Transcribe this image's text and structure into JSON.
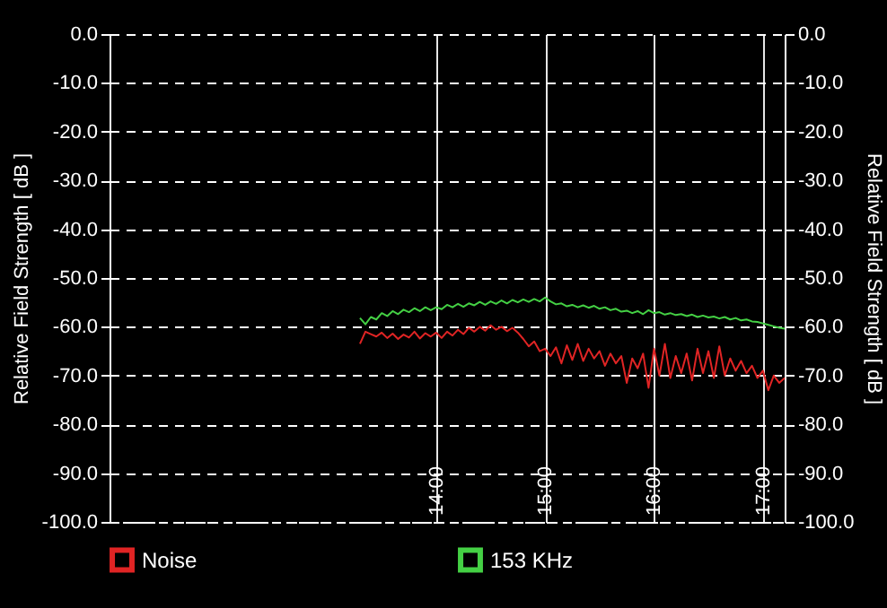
{
  "chart_data": {
    "type": "line",
    "xlabel": null,
    "ylabel": "Relative Field Strength [ dB ]",
    "y2label": "Relative Field Strength [ dB ]",
    "x": [
      13.3,
      13.35,
      13.4,
      13.45,
      13.5,
      13.55,
      13.6,
      13.65,
      13.7,
      13.75,
      13.8,
      13.85,
      13.9,
      13.95,
      14.0,
      14.05,
      14.1,
      14.15,
      14.2,
      14.25,
      14.3,
      14.35,
      14.4,
      14.45,
      14.5,
      14.55,
      14.6,
      14.65,
      14.7,
      14.75,
      14.8,
      14.85,
      14.9,
      14.95,
      15.0,
      15.05,
      15.1,
      15.15,
      15.2,
      15.25,
      15.3,
      15.35,
      15.4,
      15.45,
      15.5,
      15.55,
      15.6,
      15.65,
      15.7,
      15.75,
      15.8,
      15.85,
      15.9,
      15.95,
      16.0,
      16.05,
      16.1,
      16.15,
      16.2,
      16.25,
      16.3,
      16.35,
      16.4,
      16.45,
      16.5,
      16.55,
      16.6,
      16.65,
      16.7,
      16.75,
      16.8,
      16.85,
      16.9,
      16.95,
      17.0,
      17.05,
      17.1,
      17.15,
      17.2
    ],
    "series": [
      {
        "name": "Noise",
        "color": "#e02424",
        "values": [
          -63.5,
          -61.0,
          -61.5,
          -62.0,
          -61.2,
          -62.3,
          -61.4,
          -62.5,
          -61.6,
          -62.2,
          -61.0,
          -62.4,
          -61.3,
          -62.0,
          -61.2,
          -62.3,
          -61.0,
          -61.8,
          -60.6,
          -61.5,
          -60.2,
          -61.0,
          -60.0,
          -60.8,
          -59.7,
          -60.6,
          -60.0,
          -60.9,
          -60.2,
          -61.2,
          -62.5,
          -64.0,
          -63.0,
          -65.0,
          -64.5,
          -66.0,
          -64.2,
          -67.5,
          -63.8,
          -66.8,
          -63.5,
          -67.0,
          -64.5,
          -66.5,
          -65.0,
          -68.0,
          -65.5,
          -67.5,
          -66.0,
          -71.5,
          -66.5,
          -68.5,
          -65.5,
          -72.5,
          -64.5,
          -70.0,
          -63.5,
          -70.5,
          -66.0,
          -69.5,
          -65.5,
          -71.0,
          -64.5,
          -69.5,
          -65.0,
          -70.5,
          -64.0,
          -70.0,
          -66.5,
          -69.0,
          -67.0,
          -69.5,
          -68.0,
          -70.5,
          -69.0,
          -73.0,
          -70.0,
          -71.5,
          -70.5
        ]
      },
      {
        "name": "153 KHz",
        "color": "#44d044",
        "values": [
          -58.2,
          -59.5,
          -58.0,
          -58.5,
          -57.2,
          -57.8,
          -56.8,
          -57.4,
          -56.5,
          -57.0,
          -56.2,
          -56.8,
          -56.0,
          -56.6,
          -56.0,
          -56.4,
          -55.5,
          -56.0,
          -55.3,
          -55.9,
          -55.2,
          -55.6,
          -54.9,
          -55.5,
          -54.8,
          -55.3,
          -54.6,
          -55.2,
          -54.5,
          -55.0,
          -54.4,
          -54.9,
          -54.3,
          -54.8,
          -54.0,
          -54.8,
          -55.4,
          -55.2,
          -55.8,
          -55.5,
          -56.0,
          -55.6,
          -56.1,
          -55.7,
          -56.3,
          -56.0,
          -56.6,
          -56.3,
          -56.9,
          -56.7,
          -57.2,
          -56.8,
          -57.4,
          -56.6,
          -57.2,
          -57.0,
          -57.5,
          -57.2,
          -57.6,
          -57.4,
          -57.8,
          -57.5,
          -58.0,
          -57.7,
          -58.1,
          -57.9,
          -58.3,
          -58.0,
          -58.5,
          -58.2,
          -58.7,
          -58.5,
          -58.9,
          -59.0,
          -59.3,
          -59.6,
          -59.9,
          -60.2,
          -60.4
        ]
      }
    ],
    "xlim": [
      11,
      17.2
    ],
    "xticks": [
      {
        "value": 14,
        "label": "14:00"
      },
      {
        "value": 15,
        "label": "15:00"
      },
      {
        "value": 16,
        "label": "16:00"
      },
      {
        "value": 17,
        "label": "17:00"
      }
    ],
    "ylim": [
      -100,
      0
    ],
    "yticks": [
      {
        "value": 0,
        "label": "0.0"
      },
      {
        "value": -10,
        "label": "-10.0"
      },
      {
        "value": -20,
        "label": "-20.0"
      },
      {
        "value": -30,
        "label": "-30.0"
      },
      {
        "value": -40,
        "label": "-40.0"
      },
      {
        "value": -50,
        "label": "-50.0"
      },
      {
        "value": -60,
        "label": "-60.0"
      },
      {
        "value": -70,
        "label": "-70.0"
      },
      {
        "value": -80,
        "label": "-80.0"
      },
      {
        "value": -90,
        "label": "-90.0"
      },
      {
        "value": -100,
        "label": "-100.0"
      }
    ],
    "y2lim": [
      -100,
      0
    ],
    "y2ticks": [
      {
        "value": 0,
        "label": "0.0"
      },
      {
        "value": -10,
        "label": "-10.0"
      },
      {
        "value": -20,
        "label": "-20.0"
      },
      {
        "value": -30,
        "label": "-30.0"
      },
      {
        "value": -40,
        "label": "-40.0"
      },
      {
        "value": -50,
        "label": "-50.0"
      },
      {
        "value": -60,
        "label": "-60.0"
      },
      {
        "value": -70,
        "label": "-70.0"
      },
      {
        "value": -80,
        "label": "-80.0"
      },
      {
        "value": -90,
        "label": "-90.0"
      },
      {
        "value": -100,
        "label": "-100.0"
      }
    ],
    "grid": true,
    "legend": "bottom"
  }
}
